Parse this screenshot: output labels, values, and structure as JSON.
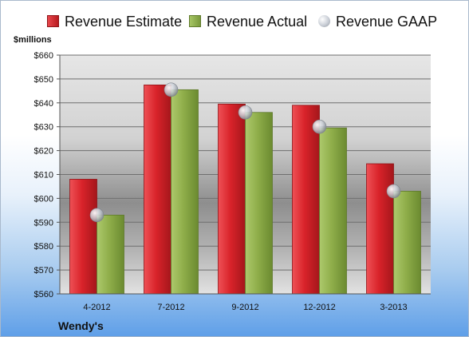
{
  "chart_data": {
    "type": "bar",
    "unit_label": "$millions",
    "company": "Wendy's",
    "categories": [
      "4-2012",
      "7-2012",
      "9-2012",
      "12-2012",
      "3-2013"
    ],
    "series": [
      {
        "name": "Revenue Estimate",
        "kind": "bar",
        "color": "#d9232a",
        "values": [
          608,
          647.5,
          639.5,
          639,
          614.5
        ]
      },
      {
        "name": "Revenue Actual",
        "kind": "bar",
        "color": "#8fae4a",
        "values": [
          593,
          645.5,
          636,
          629.5,
          603
        ]
      },
      {
        "name": "Revenue GAAP",
        "kind": "marker",
        "color": "#c9ced6",
        "values": [
          593,
          645.5,
          636,
          630,
          603
        ]
      }
    ],
    "ylim": [
      560,
      660
    ],
    "yticks": [
      560,
      570,
      580,
      590,
      600,
      610,
      620,
      630,
      640,
      650,
      660
    ],
    "ytick_labels": [
      "$560",
      "$570",
      "$580",
      "$590",
      "$600",
      "$610",
      "$620",
      "$630",
      "$640",
      "$650",
      "$660"
    ],
    "grid": true,
    "legend_position": "top"
  }
}
